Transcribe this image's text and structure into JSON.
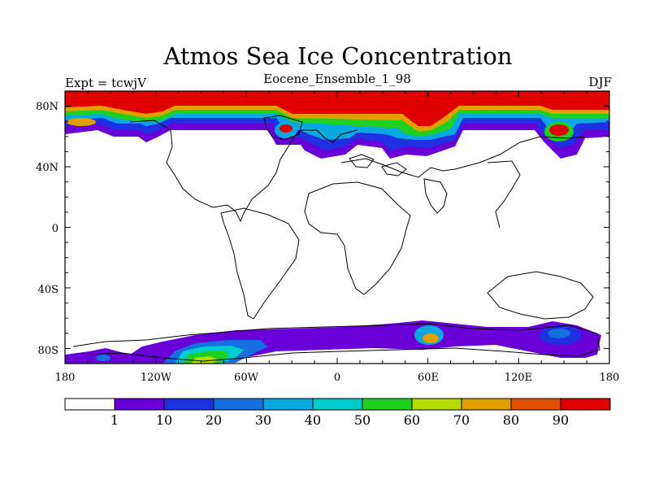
{
  "title": "Atmos Sea Ice Concentration",
  "subtitle": "Eocene_Ensemble_1_98",
  "left_label": "Expt = tcwjV",
  "right_label": "DJF",
  "lat_ticks": [
    "80N",
    "40N",
    "0",
    "40S",
    "80S"
  ],
  "lon_ticks": [
    "180",
    "120W",
    "60W",
    "0",
    "60E",
    "120E",
    "180"
  ],
  "colorbar": {
    "colors": [
      "#ffffff",
      "#6a00d8",
      "#1f30e0",
      "#1470e0",
      "#0aa8e0",
      "#00cccc",
      "#20d020",
      "#b4dc00",
      "#e0a000",
      "#e05000",
      "#e00000"
    ],
    "labels": [
      "1",
      "10",
      "20",
      "30",
      "40",
      "50",
      "60",
      "70",
      "80",
      "90"
    ]
  }
}
